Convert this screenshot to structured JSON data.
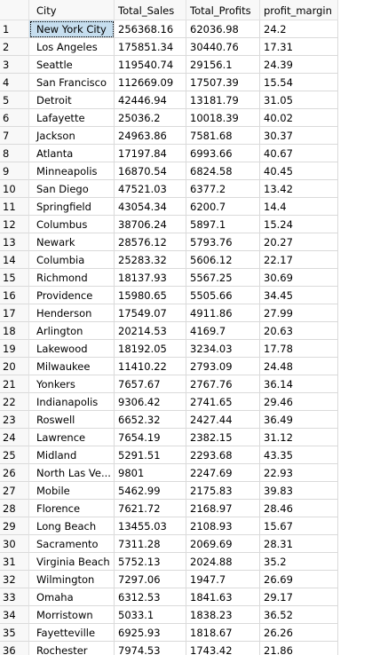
{
  "grid": {
    "columns": [
      "City",
      "Total_Sales",
      "Total_Profits",
      "profit_margin"
    ],
    "selected_row_index": 0,
    "rows": [
      [
        "1",
        "New York City",
        "256368.16",
        "62036.98",
        "24.2"
      ],
      [
        "2",
        "Los Angeles",
        "175851.34",
        "30440.76",
        "17.31"
      ],
      [
        "3",
        "Seattle",
        "119540.74",
        "29156.1",
        "24.39"
      ],
      [
        "4",
        "San Francisco",
        "112669.09",
        "17507.39",
        "15.54"
      ],
      [
        "5",
        "Detroit",
        "42446.94",
        "13181.79",
        "31.05"
      ],
      [
        "6",
        "Lafayette",
        "25036.2",
        "10018.39",
        "40.02"
      ],
      [
        "7",
        "Jackson",
        "24963.86",
        "7581.68",
        "30.37"
      ],
      [
        "8",
        "Atlanta",
        "17197.84",
        "6993.66",
        "40.67"
      ],
      [
        "9",
        "Minneapolis",
        "16870.54",
        "6824.58",
        "40.45"
      ],
      [
        "10",
        "San Diego",
        "47521.03",
        "6377.2",
        "13.42"
      ],
      [
        "11",
        "Springfield",
        "43054.34",
        "6200.7",
        "14.4"
      ],
      [
        "12",
        "Columbus",
        "38706.24",
        "5897.1",
        "15.24"
      ],
      [
        "13",
        "Newark",
        "28576.12",
        "5793.76",
        "20.27"
      ],
      [
        "14",
        "Columbia",
        "25283.32",
        "5606.12",
        "22.17"
      ],
      [
        "15",
        "Richmond",
        "18137.93",
        "5567.25",
        "30.69"
      ],
      [
        "16",
        "Providence",
        "15980.65",
        "5505.66",
        "34.45"
      ],
      [
        "17",
        "Henderson",
        "17549.07",
        "4911.86",
        "27.99"
      ],
      [
        "18",
        "Arlington",
        "20214.53",
        "4169.7",
        "20.63"
      ],
      [
        "19",
        "Lakewood",
        "18192.05",
        "3234.03",
        "17.78"
      ],
      [
        "20",
        "Milwaukee",
        "11410.22",
        "2793.09",
        "24.48"
      ],
      [
        "21",
        "Yonkers",
        "7657.67",
        "2767.76",
        "36.14"
      ],
      [
        "22",
        "Indianapolis",
        "9306.42",
        "2741.65",
        "29.46"
      ],
      [
        "23",
        "Roswell",
        "6652.32",
        "2427.44",
        "36.49"
      ],
      [
        "24",
        "Lawrence",
        "7654.19",
        "2382.15",
        "31.12"
      ],
      [
        "25",
        "Midland",
        "5291.51",
        "2293.68",
        "43.35"
      ],
      [
        "26",
        "North Las Ve...",
        "9801",
        "2247.69",
        "22.93"
      ],
      [
        "27",
        "Mobile",
        "5462.99",
        "2175.83",
        "39.83"
      ],
      [
        "28",
        "Florence",
        "7621.72",
        "2168.97",
        "28.46"
      ],
      [
        "29",
        "Long Beach",
        "13455.03",
        "2108.93",
        "15.67"
      ],
      [
        "30",
        "Sacramento",
        "7311.28",
        "2069.69",
        "28.31"
      ],
      [
        "31",
        "Virginia Beach",
        "5752.13",
        "2024.88",
        "35.2"
      ],
      [
        "32",
        "Wilmington",
        "7297.06",
        "1947.7",
        "26.69"
      ],
      [
        "33",
        "Omaha",
        "6312.53",
        "1841.63",
        "29.17"
      ],
      [
        "34",
        "Morristown",
        "5033.1",
        "1838.23",
        "36.52"
      ],
      [
        "35",
        "Fayetteville",
        "6925.93",
        "1818.67",
        "26.26"
      ],
      [
        "36",
        "Rochester",
        "7974.53",
        "1743.42",
        "21.86"
      ]
    ]
  }
}
